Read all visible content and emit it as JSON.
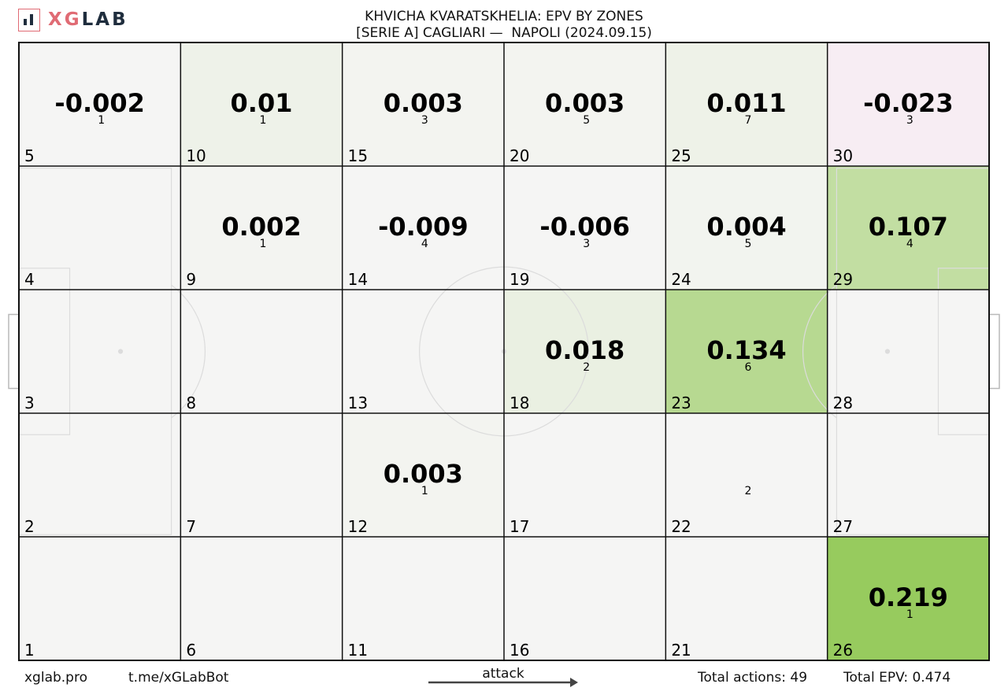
{
  "header": {
    "logo_text_accent": "XG",
    "logo_text_main": "LAB",
    "title_line1": "KHVICHA KVARATSKHELIA: EPV BY ZONES",
    "title_line2": "[SERIE A] CAGLIARI —  NAPOLI (2024.09.15)"
  },
  "footer": {
    "site": "xglab.pro",
    "bot": "t.me/xGLabBot",
    "attack_label": "attack",
    "total_actions": "Total actions: 49",
    "total_epv": "Total EPV: 0.474"
  },
  "colors": {
    "neutral": "#f5f5f4",
    "positive_max": "#97cb5e",
    "negative": "#f7edf3",
    "grid_line": "#111111",
    "pitch_line": "#dcdcdc",
    "logo_accent": "#e06b74",
    "logo_dark": "#1f2d3d"
  },
  "chart_data": {
    "type": "heatmap",
    "rows": 5,
    "cols": 6,
    "zones": [
      {
        "zone": 1,
        "epv": null,
        "actions": null
      },
      {
        "zone": 2,
        "epv": null,
        "actions": null
      },
      {
        "zone": 3,
        "epv": null,
        "actions": null
      },
      {
        "zone": 4,
        "epv": null,
        "actions": null
      },
      {
        "zone": 5,
        "epv": "-0.002",
        "actions": "1"
      },
      {
        "zone": 6,
        "epv": null,
        "actions": null
      },
      {
        "zone": 7,
        "epv": null,
        "actions": null
      },
      {
        "zone": 8,
        "epv": null,
        "actions": null
      },
      {
        "zone": 9,
        "epv": "0.002",
        "actions": "1"
      },
      {
        "zone": 10,
        "epv": "0.01",
        "actions": "1"
      },
      {
        "zone": 11,
        "epv": null,
        "actions": null
      },
      {
        "zone": 12,
        "epv": "0.003",
        "actions": "1"
      },
      {
        "zone": 13,
        "epv": null,
        "actions": null
      },
      {
        "zone": 14,
        "epv": "-0.009",
        "actions": "4"
      },
      {
        "zone": 15,
        "epv": "0.003",
        "actions": "3"
      },
      {
        "zone": 16,
        "epv": null,
        "actions": null
      },
      {
        "zone": 17,
        "epv": null,
        "actions": null
      },
      {
        "zone": 18,
        "epv": "0.018",
        "actions": "2"
      },
      {
        "zone": 19,
        "epv": "-0.006",
        "actions": "3"
      },
      {
        "zone": 20,
        "epv": "0.003",
        "actions": "5"
      },
      {
        "zone": 21,
        "epv": null,
        "actions": null
      },
      {
        "zone": 22,
        "epv": null,
        "actions": "2"
      },
      {
        "zone": 23,
        "epv": "0.134",
        "actions": "6"
      },
      {
        "zone": 24,
        "epv": "0.004",
        "actions": "5"
      },
      {
        "zone": 25,
        "epv": "0.011",
        "actions": "7"
      },
      {
        "zone": 26,
        "epv": "0.219",
        "actions": "1"
      },
      {
        "zone": 27,
        "epv": null,
        "actions": null
      },
      {
        "zone": 28,
        "epv": null,
        "actions": null
      },
      {
        "zone": 29,
        "epv": "0.107",
        "actions": "4"
      },
      {
        "zone": 30,
        "epv": "-0.023",
        "actions": "3"
      }
    ]
  }
}
